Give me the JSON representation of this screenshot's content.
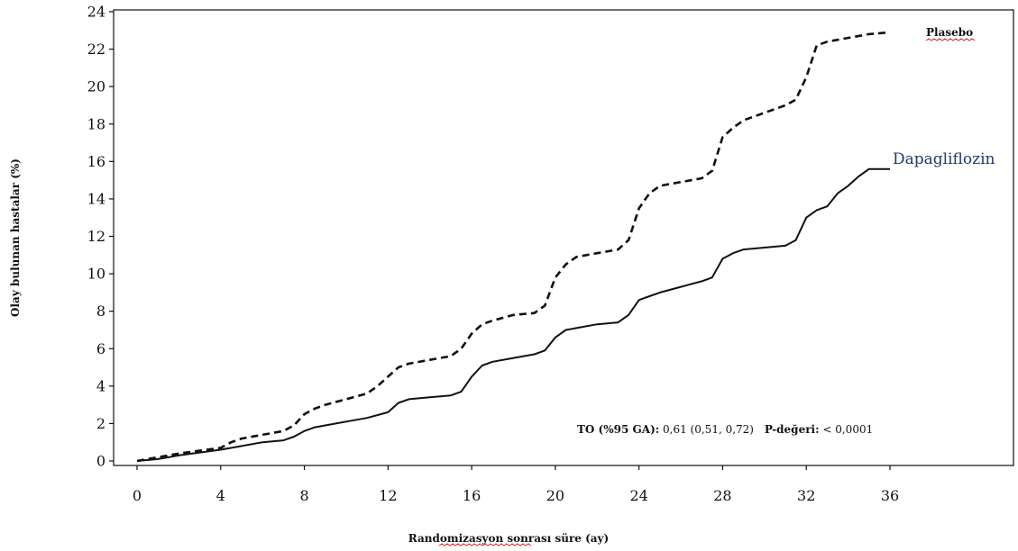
{
  "chart_data": {
    "type": "line",
    "title": "",
    "xlabel": "Randomizasyon sonrası süre (ay)",
    "ylabel": "Olay bulunan hastalar (%)",
    "xlim": [
      0,
      36
    ],
    "ylim": [
      0,
      24
    ],
    "xticks": [
      0,
      4,
      8,
      12,
      16,
      20,
      24,
      28,
      32,
      36
    ],
    "yticks": [
      0,
      2,
      4,
      6,
      8,
      10,
      12,
      14,
      16,
      18,
      20,
      22,
      24
    ],
    "grid": false,
    "legend": "inline labels at line ends",
    "series": [
      {
        "name": "Plasebo",
        "style": "dashed",
        "color": "#111111",
        "x": [
          0,
          1,
          2,
          3,
          4,
          4.5,
          5,
          6,
          7,
          7.5,
          8,
          8.5,
          9,
          10,
          11,
          11.5,
          12,
          12.5,
          13,
          14,
          15,
          15.5,
          16,
          16.5,
          17,
          18,
          19,
          19.5,
          20,
          20.5,
          21,
          22,
          23,
          23.5,
          24,
          24.5,
          25,
          26,
          27,
          27.5,
          28,
          28.5,
          29,
          30,
          31,
          31.5,
          32,
          32.5,
          33,
          34,
          35,
          36
        ],
        "y": [
          0,
          0.2,
          0.4,
          0.55,
          0.7,
          1.0,
          1.2,
          1.4,
          1.6,
          1.9,
          2.5,
          2.8,
          3.0,
          3.3,
          3.6,
          4.0,
          4.5,
          5.0,
          5.2,
          5.4,
          5.6,
          6.0,
          6.8,
          7.3,
          7.5,
          7.8,
          7.9,
          8.3,
          9.8,
          10.5,
          10.9,
          11.1,
          11.3,
          11.8,
          13.5,
          14.3,
          14.7,
          14.9,
          15.1,
          15.5,
          17.3,
          17.8,
          18.2,
          18.6,
          19.0,
          19.3,
          20.5,
          22.2,
          22.4,
          22.6,
          22.8,
          22.9
        ]
      },
      {
        "name": "Dapagliflozin",
        "style": "solid",
        "color": "#111111",
        "x": [
          0,
          1,
          2,
          3,
          4,
          5,
          6,
          7,
          7.5,
          8,
          8.5,
          9,
          10,
          11,
          12,
          12.5,
          13,
          14,
          15,
          15.5,
          16,
          16.5,
          17,
          18,
          19,
          19.5,
          20,
          20.5,
          21,
          22,
          23,
          23.5,
          24,
          24.5,
          25,
          26,
          27,
          27.5,
          28,
          28.5,
          29,
          30,
          31,
          31.5,
          32,
          32.5,
          33,
          33.5,
          34,
          34.5,
          35,
          36
        ],
        "y": [
          0,
          0.1,
          0.3,
          0.45,
          0.6,
          0.8,
          1.0,
          1.1,
          1.3,
          1.6,
          1.8,
          1.9,
          2.1,
          2.3,
          2.6,
          3.1,
          3.3,
          3.4,
          3.5,
          3.7,
          4.5,
          5.1,
          5.3,
          5.5,
          5.7,
          5.9,
          6.6,
          7.0,
          7.1,
          7.3,
          7.4,
          7.8,
          8.6,
          8.8,
          9.0,
          9.3,
          9.6,
          9.8,
          10.8,
          11.1,
          11.3,
          11.4,
          11.5,
          11.8,
          13.0,
          13.4,
          13.6,
          14.3,
          14.7,
          15.2,
          15.6,
          15.6
        ]
      }
    ],
    "annotations": [
      {
        "label_bold_1": "TO (%95 GA):",
        "value_1": " 0,61 (0,51, 0,72)",
        "label_bold_2": "P-değeri:",
        "value_2": " < 0,0001"
      }
    ]
  }
}
